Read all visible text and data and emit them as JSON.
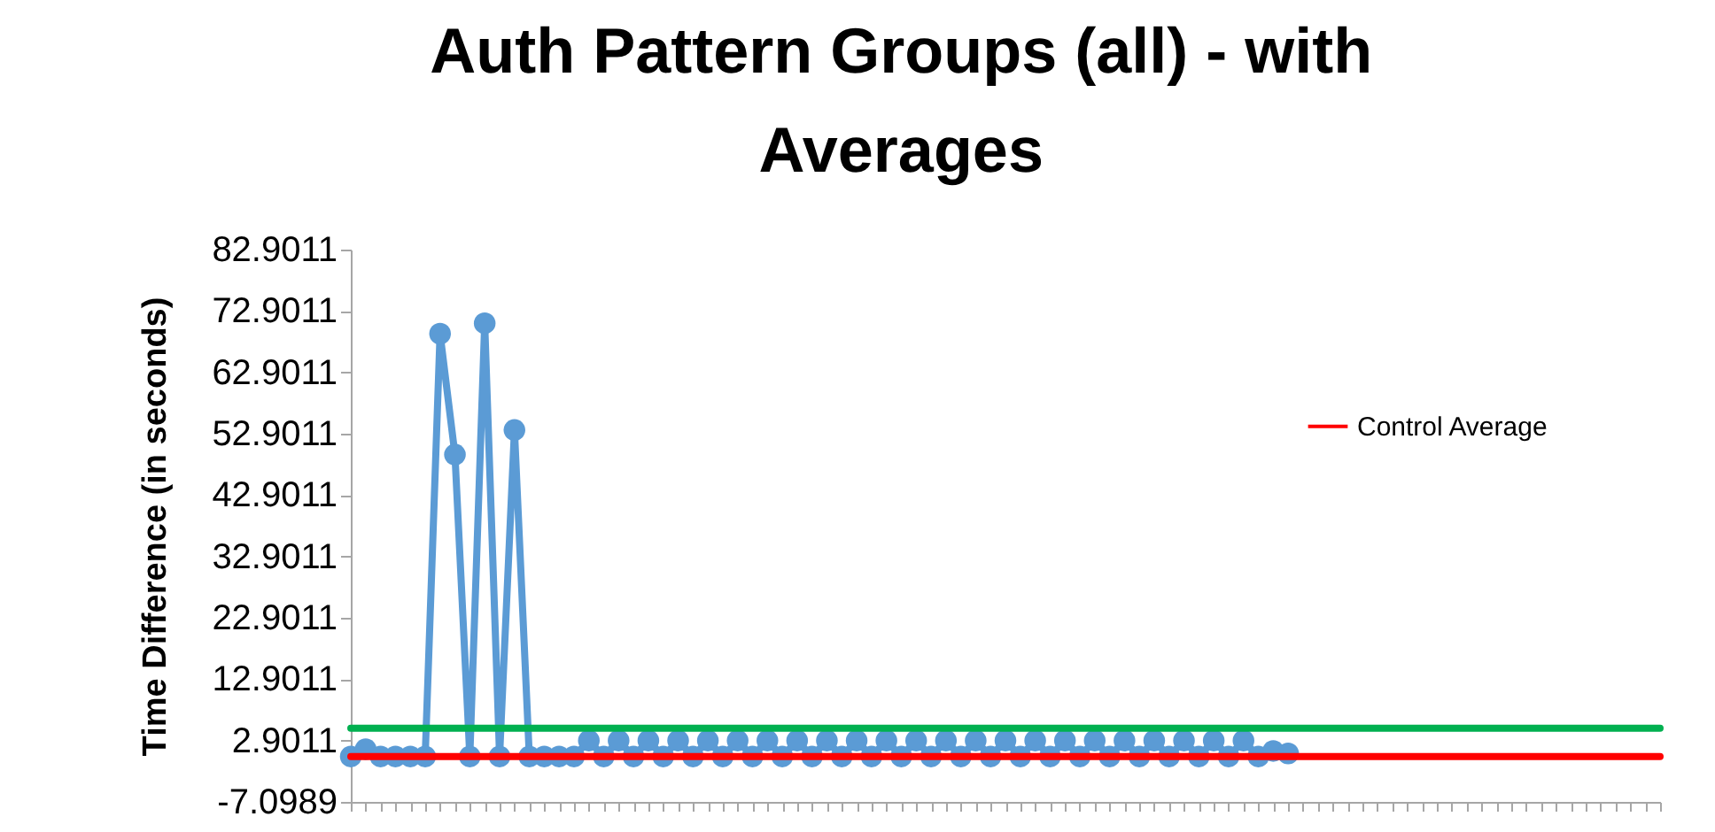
{
  "chart_data": {
    "type": "line",
    "title": "Auth Pattern Groups (all) - with Averages",
    "ylabel": "Time Difference    (in seconds)",
    "categories": [
      null,
      null,
      null,
      null,
      null,
      null,
      null,
      null,
      null,
      null,
      null,
      null,
      null,
      null,
      null,
      null,
      null,
      null,
      null,
      null,
      null,
      null,
      null,
      null,
      null,
      null,
      null,
      null,
      null,
      null,
      null,
      null,
      null,
      null,
      null,
      null,
      null,
      null,
      null,
      null,
      null,
      null,
      null,
      null,
      null,
      null,
      null,
      null,
      null,
      null,
      null,
      null,
      null,
      null,
      null,
      null,
      null,
      null,
      null,
      null,
      null,
      null,
      null,
      null,
      null,
      null,
      null,
      null,
      null,
      null,
      null,
      null,
      null,
      null,
      null,
      null,
      null,
      null,
      null,
      null,
      null,
      null,
      null,
      null,
      null,
      null,
      null,
      null,
      null
    ],
    "series": [
      {
        "color": "#5b9bd5",
        "marker": "circle",
        "values": [
          0.3,
          1.5,
          0.3,
          0.3,
          0.3,
          0.3,
          69.2,
          49.5,
          0.3,
          70.9,
          0.3,
          53.5,
          0.3,
          0.3,
          0.3,
          0.3,
          2.9,
          0.3,
          2.9,
          0.3,
          2.9,
          0.3,
          2.9,
          0.3,
          2.9,
          0.3,
          2.9,
          0.3,
          2.9,
          0.3,
          2.9,
          0.3,
          2.9,
          0.3,
          2.9,
          0.3,
          2.9,
          0.3,
          2.9,
          0.3,
          2.9,
          0.3,
          2.9,
          0.3,
          2.9,
          0.3,
          2.9,
          0.3,
          2.9,
          0.3,
          2.9,
          0.3,
          2.9,
          0.3,
          2.9,
          0.3,
          2.9,
          0.3,
          2.9,
          0.3,
          2.9,
          0.3,
          1.2,
          0.8,
          null,
          null,
          null,
          null,
          null,
          null,
          null,
          null,
          null,
          null,
          null,
          null,
          null,
          null,
          null,
          null,
          null,
          null,
          null,
          null,
          null,
          null,
          null,
          null,
          null
        ]
      },
      {
        "color": "#00b050",
        "marker": "none",
        "values": [
          4.9,
          4.9,
          4.9,
          4.9,
          4.9,
          4.9,
          4.9,
          4.9,
          4.9,
          4.9,
          4.9,
          4.9,
          4.9,
          4.9,
          4.9,
          4.9,
          4.9,
          4.9,
          4.9,
          4.9,
          4.9,
          4.9,
          4.9,
          4.9,
          4.9,
          4.9,
          4.9,
          4.9,
          4.9,
          4.9,
          4.9,
          4.9,
          4.9,
          4.9,
          4.9,
          4.9,
          4.9,
          4.9,
          4.9,
          4.9,
          4.9,
          4.9,
          4.9,
          4.9,
          4.9,
          4.9,
          4.9,
          4.9,
          4.9,
          4.9,
          4.9,
          4.9,
          4.9,
          4.9,
          4.9,
          4.9,
          4.9,
          4.9,
          4.9,
          4.9,
          4.9,
          4.9,
          4.9,
          4.9,
          4.9,
          4.9,
          4.9,
          4.9,
          4.9,
          4.9,
          4.9,
          4.9,
          4.9,
          4.9,
          4.9,
          4.9,
          4.9,
          4.9,
          4.9,
          4.9,
          4.9,
          4.9,
          4.9,
          4.9,
          4.9,
          4.9,
          4.9,
          4.9,
          4.9
        ]
      },
      {
        "name": "Control Average",
        "color": "#ff0000",
        "marker": "none",
        "values": [
          0.3,
          0.3,
          0.3,
          0.3,
          0.3,
          0.3,
          0.3,
          0.3,
          0.3,
          0.3,
          0.3,
          0.3,
          0.3,
          0.3,
          0.3,
          0.3,
          0.3,
          0.3,
          0.3,
          0.3,
          0.3,
          0.3,
          0.3,
          0.3,
          0.3,
          0.3,
          0.3,
          0.3,
          0.3,
          0.3,
          0.3,
          0.3,
          0.3,
          0.3,
          0.3,
          0.3,
          0.3,
          0.3,
          0.3,
          0.3,
          0.3,
          0.3,
          0.3,
          0.3,
          0.3,
          0.3,
          0.3,
          0.3,
          0.3,
          0.3,
          0.3,
          0.3,
          0.3,
          0.3,
          0.3,
          0.3,
          0.3,
          0.3,
          0.3,
          0.3,
          0.3,
          0.3,
          0.3,
          0.3,
          0.3,
          0.3,
          0.3,
          0.3,
          0.3,
          0.3,
          0.3,
          0.3,
          0.3,
          0.3,
          0.3,
          0.3,
          0.3,
          0.3,
          0.3,
          0.3,
          0.3,
          0.3,
          0.3,
          0.3,
          0.3,
          0.3,
          0.3,
          0.3,
          0.3
        ]
      }
    ],
    "ylim": [
      -7.0989,
      82.9011
    ],
    "yticks": [
      -7.0989,
      2.9011,
      12.9011,
      22.9011,
      32.9011,
      42.9011,
      52.9011,
      62.9011,
      72.9011,
      82.9011
    ],
    "grid": false,
    "legend": "right",
    "tick_labels": "y"
  }
}
